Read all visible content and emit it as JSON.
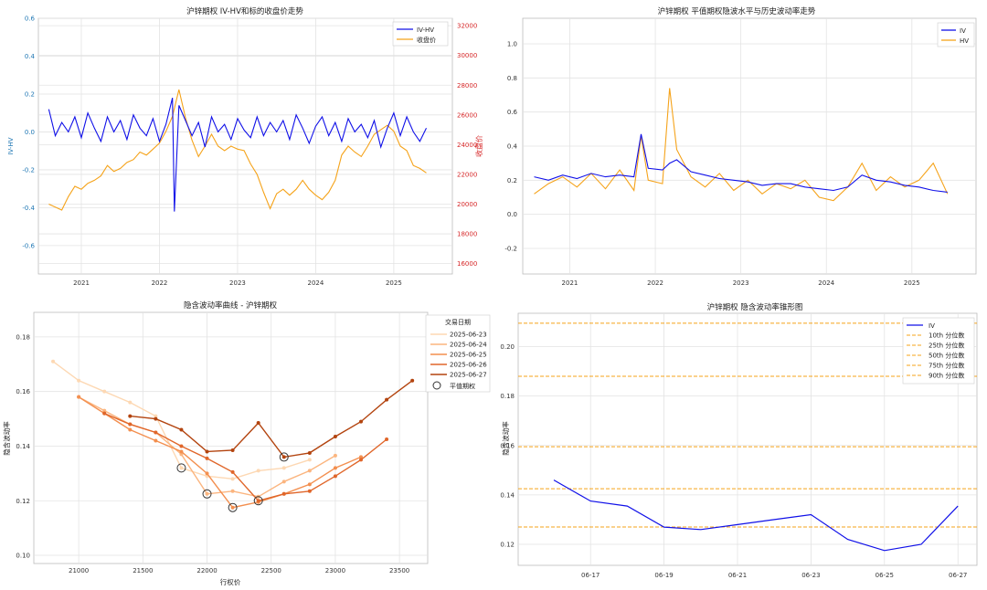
{
  "chart_data": [
    {
      "type": "line",
      "title": "沪锌期权 IV-HV和标的收盘价走势",
      "ylabel": "IV-HV",
      "y2label": "收盘价",
      "ylim": [
        -0.75,
        0.6
      ],
      "y2lim": [
        15300,
        32500
      ],
      "yticks": [
        "-0.6",
        "-0.4",
        "-0.2",
        "0.0",
        "0.2",
        "0.4",
        "0.6"
      ],
      "y2ticks": [
        "16000",
        "18000",
        "20000",
        "22000",
        "24000",
        "26000",
        "28000",
        "30000",
        "32000"
      ],
      "xticks": [
        "2021",
        "2022",
        "2023",
        "2024",
        "2025"
      ],
      "legend_position": "top-right",
      "grid": true,
      "colors": {
        "iv_hv": "#1010e8",
        "close": "#f5a31a"
      },
      "series": [
        {
          "name": "IV-HV",
          "x": [
            "2020-08",
            "2020-09",
            "2020-10",
            "2020-11",
            "2020-12",
            "2021-01",
            "2021-02",
            "2021-03",
            "2021-04",
            "2021-05",
            "2021-06",
            "2021-07",
            "2021-08",
            "2021-09",
            "2021-10",
            "2021-11",
            "2021-12",
            "2022-01",
            "2022-02",
            "2022-03",
            "2022-03-10",
            "2022-04",
            "2022-05",
            "2022-06",
            "2022-07",
            "2022-08",
            "2022-09",
            "2022-10",
            "2022-11",
            "2022-12",
            "2023-01",
            "2023-02",
            "2023-03",
            "2023-04",
            "2023-05",
            "2023-06",
            "2023-07",
            "2023-08",
            "2023-09",
            "2023-10",
            "2023-11",
            "2023-12",
            "2024-01",
            "2024-02",
            "2024-03",
            "2024-04",
            "2024-05",
            "2024-06",
            "2024-07",
            "2024-08",
            "2024-09",
            "2024-10",
            "2024-11",
            "2024-12",
            "2025-01",
            "2025-02",
            "2025-03",
            "2025-04",
            "2025-05",
            "2025-06"
          ],
          "values": [
            0.12,
            -0.02,
            0.05,
            0.0,
            0.08,
            -0.03,
            0.1,
            0.02,
            -0.05,
            0.08,
            0.0,
            0.06,
            -0.04,
            0.09,
            0.02,
            -0.02,
            0.07,
            -0.05,
            0.04,
            0.18,
            -0.42,
            0.14,
            0.06,
            -0.02,
            0.05,
            -0.08,
            0.08,
            0.0,
            0.04,
            -0.04,
            0.07,
            0.01,
            -0.03,
            0.08,
            -0.02,
            0.05,
            0.0,
            0.06,
            -0.04,
            0.09,
            0.02,
            -0.06,
            0.03,
            0.08,
            -0.02,
            0.05,
            -0.05,
            0.07,
            0.0,
            0.04,
            -0.03,
            0.06,
            -0.08,
            0.02,
            0.1,
            -0.02,
            0.08,
            0.0,
            -0.05,
            0.02
          ]
        },
        {
          "name": "收盘价",
          "x": [
            "2020-08",
            "2020-09",
            "2020-10",
            "2020-11",
            "2020-12",
            "2021-01",
            "2021-02",
            "2021-03",
            "2021-04",
            "2021-05",
            "2021-06",
            "2021-07",
            "2021-08",
            "2021-09",
            "2021-10",
            "2021-11",
            "2021-12",
            "2022-01",
            "2022-02",
            "2022-03",
            "2022-04",
            "2022-05",
            "2022-06",
            "2022-07",
            "2022-08",
            "2022-09",
            "2022-10",
            "2022-11",
            "2022-12",
            "2023-01",
            "2023-02",
            "2023-03",
            "2023-04",
            "2023-05",
            "2023-06",
            "2023-07",
            "2023-08",
            "2023-09",
            "2023-10",
            "2023-11",
            "2023-12",
            "2024-01",
            "2024-02",
            "2024-03",
            "2024-04",
            "2024-05",
            "2024-06",
            "2024-07",
            "2024-08",
            "2024-09",
            "2024-10",
            "2024-11",
            "2024-12",
            "2025-01",
            "2025-02",
            "2025-03",
            "2025-04",
            "2025-05",
            "2025-06"
          ],
          "values": [
            20000,
            19800,
            19600,
            20500,
            21200,
            21000,
            21400,
            21600,
            21900,
            22600,
            22200,
            22400,
            22800,
            23000,
            23500,
            23300,
            23700,
            24100,
            24900,
            25900,
            27700,
            25800,
            24300,
            23200,
            23900,
            24700,
            23900,
            23600,
            23900,
            23700,
            23600,
            22700,
            22000,
            20800,
            19700,
            20700,
            21000,
            20600,
            21000,
            21600,
            21000,
            20600,
            20300,
            20800,
            21600,
            23300,
            23900,
            23500,
            23200,
            23900,
            24700,
            25000,
            25300,
            24900,
            23900,
            23600,
            22600,
            22400,
            22100
          ]
        }
      ]
    },
    {
      "type": "line",
      "title": "沪锌期权 平值期权隐波水平与历史波动率走势",
      "ylim": [
        -0.35,
        1.15
      ],
      "yticks": [
        "-0.2",
        "0.0",
        "0.2",
        "0.4",
        "0.6",
        "0.8",
        "1.0"
      ],
      "xticks": [
        "2021",
        "2022",
        "2023",
        "2024",
        "2025"
      ],
      "legend_position": "top-right",
      "grid": true,
      "colors": {
        "IV": "#1010e8",
        "HV": "#f5a31a"
      },
      "series": [
        {
          "name": "IV",
          "x": [
            "2020-08",
            "2020-10",
            "2020-12",
            "2021-02",
            "2021-04",
            "2021-06",
            "2021-08",
            "2021-10",
            "2021-11",
            "2021-12",
            "2022-02",
            "2022-03",
            "2022-04",
            "2022-06",
            "2022-08",
            "2022-10",
            "2022-12",
            "2023-02",
            "2023-04",
            "2023-06",
            "2023-08",
            "2023-10",
            "2023-12",
            "2024-02",
            "2024-04",
            "2024-06",
            "2024-08",
            "2024-10",
            "2024-12",
            "2025-02",
            "2025-04",
            "2025-06"
          ],
          "values": [
            0.22,
            0.2,
            0.23,
            0.21,
            0.24,
            0.22,
            0.23,
            0.22,
            0.47,
            0.27,
            0.26,
            0.3,
            0.32,
            0.25,
            0.23,
            0.21,
            0.2,
            0.19,
            0.17,
            0.18,
            0.18,
            0.16,
            0.15,
            0.14,
            0.16,
            0.23,
            0.2,
            0.19,
            0.17,
            0.16,
            0.14,
            0.13
          ]
        },
        {
          "name": "HV",
          "x": [
            "2020-08",
            "2020-10",
            "2020-12",
            "2021-02",
            "2021-04",
            "2021-06",
            "2021-08",
            "2021-10",
            "2021-11",
            "2021-12",
            "2022-02",
            "2022-03",
            "2022-04",
            "2022-06",
            "2022-08",
            "2022-10",
            "2022-12",
            "2023-02",
            "2023-04",
            "2023-06",
            "2023-08",
            "2023-10",
            "2023-12",
            "2024-02",
            "2024-04",
            "2024-06",
            "2024-08",
            "2024-10",
            "2024-12",
            "2025-02",
            "2025-04",
            "2025-06"
          ],
          "values": [
            0.12,
            0.18,
            0.22,
            0.16,
            0.24,
            0.15,
            0.26,
            0.14,
            0.46,
            0.2,
            0.18,
            0.74,
            0.38,
            0.22,
            0.16,
            0.24,
            0.14,
            0.2,
            0.12,
            0.18,
            0.15,
            0.2,
            0.1,
            0.08,
            0.16,
            0.3,
            0.14,
            0.22,
            0.16,
            0.2,
            0.3,
            0.12
          ]
        }
      ]
    },
    {
      "type": "line",
      "title": "隐含波动率曲线 - 沪锌期权",
      "xlabel": "行权价",
      "ylabel": "隐含波动率",
      "xlim": [
        20650,
        23720
      ],
      "ylim": [
        0.097,
        0.189
      ],
      "xticks": [
        "21000",
        "21500",
        "22000",
        "22500",
        "23000",
        "23500"
      ],
      "yticks": [
        "0.10",
        "0.12",
        "0.14",
        "0.16",
        "0.18"
      ],
      "legend_title": "交易日期",
      "legend_position": "top-right",
      "atm_label": "平值期权",
      "grid": true,
      "series": [
        {
          "name": "2025-06-23",
          "color": "#fdd8b3",
          "x": [
            20800,
            21000,
            21200,
            21400,
            21600,
            21800,
            22000,
            22200,
            22400,
            22600,
            22800
          ],
          "values": [
            0.171,
            0.164,
            0.16,
            0.156,
            0.151,
            0.132,
            0.129,
            0.128,
            0.131,
            0.132,
            0.135
          ],
          "atm": 21800
        },
        {
          "name": "2025-06-24",
          "color": "#fbb57f",
          "x": [
            21000,
            21200,
            21400,
            21600,
            21800,
            22000,
            22200,
            22400,
            22600,
            22800,
            23000
          ],
          "values": [
            0.158,
            0.153,
            0.148,
            0.145,
            0.137,
            0.1225,
            0.1235,
            0.1215,
            0.127,
            0.131,
            0.1365
          ],
          "atm": 22000
        },
        {
          "name": "2025-06-25",
          "color": "#f38f4f",
          "x": [
            21000,
            21200,
            21400,
            21600,
            21800,
            22000,
            22200,
            22400,
            22600,
            22800,
            23000,
            23200
          ],
          "values": [
            0.158,
            0.152,
            0.146,
            0.142,
            0.138,
            0.13,
            0.1175,
            0.1195,
            0.1225,
            0.126,
            0.132,
            0.136
          ],
          "atm": 22200
        },
        {
          "name": "2025-06-26",
          "color": "#e0662a",
          "x": [
            21200,
            21400,
            21600,
            21800,
            22000,
            22200,
            22400,
            22600,
            22800,
            23000,
            23200,
            23400
          ],
          "values": [
            0.152,
            0.148,
            0.145,
            0.14,
            0.1355,
            0.1305,
            0.12,
            0.1225,
            0.1235,
            0.129,
            0.135,
            0.1425
          ],
          "atm": 22400
        },
        {
          "name": "2025-06-27",
          "color": "#b3440f",
          "x": [
            21400,
            21600,
            21800,
            22000,
            22200,
            22400,
            22600,
            22800,
            23000,
            23200,
            23400,
            23600
          ],
          "values": [
            0.151,
            0.15,
            0.146,
            0.138,
            0.1385,
            0.1485,
            0.136,
            0.1375,
            0.1435,
            0.149,
            0.157,
            0.164
          ],
          "atm": 22600
        }
      ]
    },
    {
      "type": "line",
      "title": "沪锌期权 隐含波动率锥形图",
      "ylabel": "隐含波动率",
      "ylim": [
        0.1115,
        0.2135
      ],
      "yticks": [
        "0.12",
        "0.14",
        "0.16",
        "0.18",
        "0.20"
      ],
      "xticks": [
        "06-17",
        "06-19",
        "06-21",
        "06-23",
        "06-25",
        "06-27"
      ],
      "legend_position": "top-right",
      "grid": true,
      "series": [
        {
          "name": "IV",
          "color": "#1010e8",
          "x": [
            "06-16",
            "06-17",
            "06-18",
            "06-19",
            "06-20",
            "06-21",
            "06-22",
            "06-23",
            "06-24",
            "06-25",
            "06-26",
            "06-27"
          ],
          "values": [
            0.146,
            0.1375,
            0.1355,
            0.127,
            0.126,
            0.128,
            0.13,
            0.132,
            0.122,
            0.1175,
            0.12,
            0.1355
          ]
        }
      ],
      "percentiles": [
        {
          "name": "10th 分位数",
          "value": 0.127
        },
        {
          "name": "25th 分位数",
          "value": 0.1425
        },
        {
          "name": "50th 分位数",
          "value": 0.1595
        },
        {
          "name": "75th 分位数",
          "value": 0.188
        },
        {
          "name": "90th 分位数",
          "value": 0.2095
        }
      ],
      "percentile_color": "#f5a31a"
    }
  ]
}
